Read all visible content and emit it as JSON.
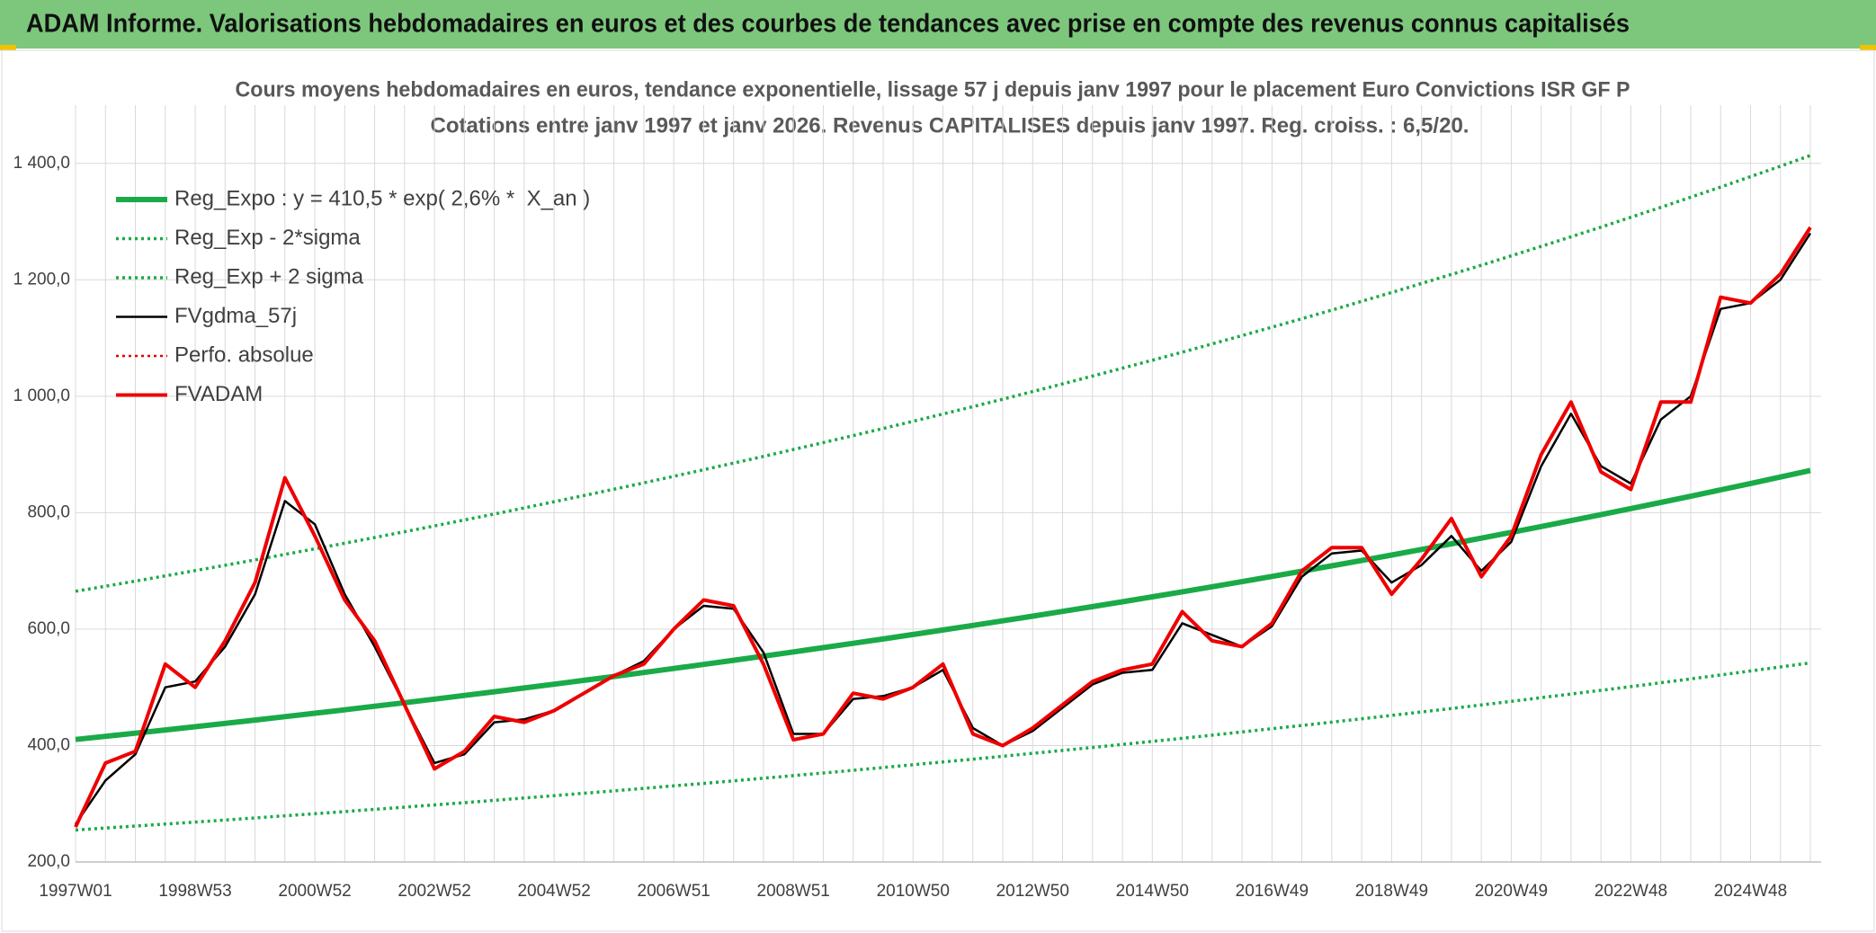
{
  "chart_data": {
    "type": "line",
    "header": "ADAM Informe. Valorisations hebdomadaires en euros et des courbes de tendances avec prise en compte des revenus connus capitalisés",
    "title": "Cours moyens hebdomadaires en euros, tendance exponentielle, lissage 57 j depuis janv 1997 pour le placement Euro Convictions ISR GF P",
    "subtitle": "Cotations entre janv 1997 et janv 2026. Revenus CAPITALISES depuis janv 1997. Reg. croiss. : 6,5/20.",
    "categories": [
      "1997W01",
      null,
      null,
      null,
      "1998W53",
      null,
      null,
      null,
      "2000W52",
      null,
      null,
      null,
      "2002W52",
      null,
      null,
      null,
      "2004W52",
      null,
      null,
      null,
      "2006W51",
      null,
      null,
      null,
      "2008W51",
      null,
      null,
      null,
      "2010W50",
      null,
      null,
      null,
      "2012W50",
      null,
      null,
      null,
      "2014W50",
      null,
      null,
      null,
      "2016W49",
      null,
      null,
      null,
      "2018W49",
      null,
      null,
      null,
      "2020W49",
      null,
      null,
      null,
      "2022W48",
      null,
      null,
      null,
      "2024W48",
      null,
      null
    ],
    "ylim": [
      200,
      1500
    ],
    "yticks": [
      {
        "value": 200,
        "label": "200,0"
      },
      {
        "value": 400,
        "label": "400,0"
      },
      {
        "value": 600,
        "label": "600,0"
      },
      {
        "value": 800,
        "label": "800,0"
      },
      {
        "value": 1000,
        "label": "1 000,0"
      },
      {
        "value": 1200,
        "label": "1 200,0"
      },
      {
        "value": 1400,
        "label": "1 400,0"
      }
    ],
    "grid": true,
    "legend": "top-left",
    "series": [
      {
        "name": "Reg_Expo : y = 410,5 * exp( 2,6% *  X_an )",
        "color": "#1aaa48",
        "dash": false,
        "values": [
          410.5,
          415.9,
          421.3,
          426.8,
          432.4,
          438.1,
          443.8,
          449.6,
          455.5,
          461.4,
          467.5,
          473.6,
          479.8,
          486.1,
          492.4,
          498.9,
          505.4,
          512.0,
          518.7,
          525.5,
          532.4,
          539.4,
          546.4,
          553.5,
          560.8,
          568.2,
          575.6,
          583.1,
          590.7,
          598.5,
          606.3,
          614.2,
          622.3,
          630.4,
          638.7,
          647.0,
          655.5,
          664.1,
          672.8,
          681.6,
          690.5,
          699.5,
          708.7,
          717.9,
          727.3,
          736.9,
          746.5,
          756.3,
          766.2,
          776.2,
          786.4,
          796.6,
          807.1,
          817.6,
          828.3,
          839.2,
          850.1,
          861.3,
          872.5
        ]
      },
      {
        "name": "Reg_Exp - 2*sigma",
        "color": "#1aaa48",
        "dash": true,
        "values": [
          255,
          258.3,
          261.7,
          265.1,
          268.6,
          272.1,
          275.7,
          279.3,
          282.9,
          286.6,
          290.4,
          294.2,
          298.0,
          301.9,
          305.9,
          309.9,
          314.0,
          318.1,
          322.2,
          326.4,
          330.7,
          335.0,
          339.4,
          343.9,
          348.4,
          352.9,
          357.5,
          362.2,
          367.0,
          371.8,
          376.6,
          381.6,
          386.6,
          391.6,
          396.7,
          401.9,
          407.2,
          412.5,
          417.9,
          423.4,
          428.9,
          434.5,
          440.2,
          446.0,
          451.8,
          457.7,
          463.7,
          469.8,
          475.9,
          482.2,
          488.5,
          494.9,
          501.3,
          507.9,
          514.5,
          521.3,
          528.1,
          535.0,
          542.0
        ]
      },
      {
        "name": "Reg_Exp + 2 sigma",
        "color": "#1aaa48",
        "dash": true,
        "values": [
          665,
          673.7,
          682.5,
          691.4,
          700.5,
          709.7,
          718.9,
          728.3,
          737.9,
          747.5,
          757.3,
          767.2,
          777.3,
          787.4,
          797.7,
          808.2,
          818.8,
          829.5,
          840.3,
          851.3,
          862.5,
          873.7,
          885.2,
          896.7,
          908.5,
          920.4,
          932.4,
          944.6,
          957.0,
          969.5,
          982.2,
          995.0,
          1008.1,
          1021.3,
          1034.6,
          1048.2,
          1061.9,
          1075.8,
          1089.9,
          1104.1,
          1118.6,
          1133.2,
          1148.0,
          1163.1,
          1178.3,
          1193.7,
          1209.3,
          1225.1,
          1241.2,
          1257.4,
          1273.9,
          1290.5,
          1307.4,
          1324.5,
          1341.9,
          1359.4,
          1377.2,
          1395.2,
          1413.5
        ]
      },
      {
        "name": "FVgdma_57j",
        "color": "#000000",
        "dash": false,
        "values": [
          265,
          340,
          385,
          500,
          510,
          570,
          660,
          820,
          780,
          660,
          570,
          470,
          370,
          385,
          440,
          445,
          460,
          490,
          520,
          545,
          600,
          640,
          635,
          560,
          420,
          420,
          480,
          485,
          500,
          530,
          430,
          400,
          425,
          465,
          505,
          525,
          530,
          610,
          590,
          570,
          605,
          690,
          730,
          735,
          680,
          710,
          760,
          700,
          750,
          880,
          970,
          880,
          850,
          960,
          1000,
          1150,
          1160,
          1200,
          1280
        ]
      },
      {
        "name": "Perfo. absolue",
        "color": "#e00000",
        "dash": true,
        "values": [
          null,
          null,
          null,
          null,
          null,
          null,
          null,
          null,
          null,
          null,
          null,
          null,
          null,
          null,
          null,
          null,
          null,
          null,
          null,
          null,
          null,
          null,
          null,
          null,
          null,
          null,
          null,
          null,
          null,
          null,
          null,
          null,
          null,
          null,
          null,
          null,
          null,
          null,
          null,
          null,
          null,
          null,
          null,
          null,
          null,
          null,
          null,
          null,
          null,
          null,
          null,
          null,
          null,
          null,
          null,
          null,
          null,
          null,
          null
        ]
      },
      {
        "name": "FVADAM",
        "color": "#ee0000",
        "dash": false,
        "values": [
          260,
          370,
          390,
          540,
          500,
          580,
          680,
          860,
          760,
          650,
          580,
          470,
          360,
          390,
          450,
          440,
          460,
          490,
          520,
          540,
          600,
          650,
          640,
          540,
          410,
          420,
          490,
          480,
          500,
          540,
          420,
          400,
          430,
          470,
          510,
          530,
          540,
          630,
          580,
          570,
          610,
          700,
          740,
          740,
          660,
          720,
          790,
          690,
          760,
          900,
          990,
          870,
          840,
          990,
          990,
          1170,
          1160,
          1210,
          1290
        ]
      }
    ]
  }
}
